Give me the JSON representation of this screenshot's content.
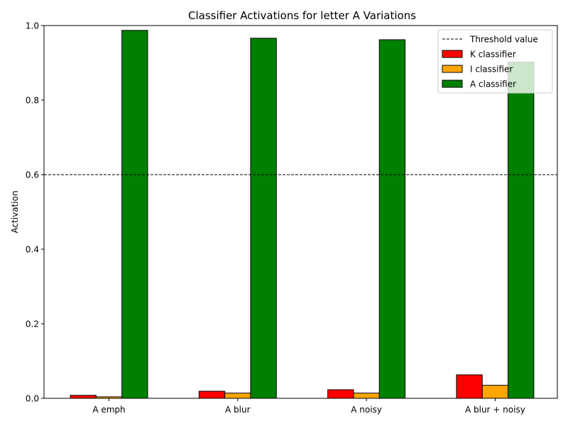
{
  "chart_data": {
    "type": "bar",
    "title": "Classifier Activations for letter A Variations",
    "xlabel": "",
    "ylabel": "Activation",
    "categories": [
      "A emph",
      "A blur",
      "A noisy",
      "A blur + noisy"
    ],
    "ylim": [
      0,
      1.0
    ],
    "yticks": [
      "0.0",
      "0.2",
      "0.4",
      "0.6",
      "0.8",
      "1.0"
    ],
    "threshold": {
      "name": "Threshold value",
      "value": 0.6,
      "color": "#000000",
      "style": "dashed"
    },
    "series": [
      {
        "name": "K classifier",
        "color": "#ff0000",
        "values": [
          0.008,
          0.019,
          0.023,
          0.063
        ]
      },
      {
        "name": "I classifier",
        "color": "#ffa500",
        "values": [
          0.004,
          0.014,
          0.014,
          0.035
        ]
      },
      {
        "name": "A classifier",
        "color": "#008000",
        "values": [
          0.987,
          0.966,
          0.962,
          0.902
        ]
      }
    ],
    "grid": false,
    "legend_position": "top-right"
  }
}
